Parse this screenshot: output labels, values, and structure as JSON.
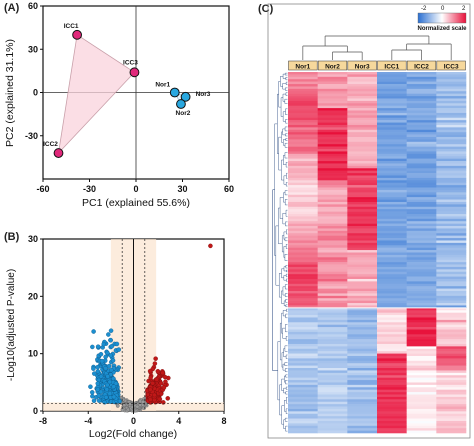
{
  "panels": {
    "a": {
      "letter": "(A)"
    },
    "b": {
      "letter": "(B)"
    },
    "c": {
      "letter": "(C)"
    }
  },
  "chart_data": [
    {
      "type": "scatter",
      "panel": "A",
      "xlabel": "PC1 (explained 55.6%)",
      "ylabel": "PC2 (explained 31.1%)",
      "xlim": [
        -60,
        60
      ],
      "ylim": [
        -60,
        60
      ],
      "xticks": [
        -60,
        -30,
        0,
        30,
        60
      ],
      "yticks": [
        -30,
        0,
        30,
        60
      ],
      "series": [
        {
          "name": "ICC",
          "color": "#e0287a",
          "points": [
            {
              "label": "ICC1",
              "x": -38,
              "y": 40
            },
            {
              "label": "ICC2",
              "x": -50,
              "y": -42
            },
            {
              "label": "ICC3",
              "x": -1,
              "y": 14
            }
          ]
        },
        {
          "name": "Nor",
          "color": "#29a8e0",
          "points": [
            {
              "label": "Nor1",
              "x": 25,
              "y": 0
            },
            {
              "label": "Nor3",
              "x": 32,
              "y": -3
            },
            {
              "label": "Nor2",
              "x": 29,
              "y": -8
            }
          ]
        }
      ]
    },
    {
      "type": "scatter",
      "panel": "B",
      "xlabel": "Log2(Fold change)",
      "ylabel": "-Log10(adjusted P-value)",
      "xlim": [
        -8,
        8
      ],
      "ylim": [
        0,
        30
      ],
      "xticks": [
        -8,
        -4,
        0,
        4,
        8
      ],
      "yticks": [
        0,
        10,
        20,
        30
      ],
      "thresholds": {
        "fc_lines": [
          -1,
          1
        ],
        "p_line": 1.3
      },
      "colors": {
        "down": "#1b8fd0",
        "up": "#c01818",
        "ns": "#9a9a9a"
      }
    },
    {
      "type": "heatmap",
      "panel": "C",
      "columns": [
        "Nor1",
        "Nor2",
        "Nor3",
        "ICC1",
        "ICC2",
        "ICC3"
      ],
      "legend": {
        "min": "-2",
        "mid": "0",
        "max": "2",
        "title": "Normalized scale"
      },
      "colors": {
        "low": "#2a6fd1",
        "mid": "#ffffff",
        "high": "#e8103a",
        "header": "#f6d89c"
      }
    }
  ]
}
